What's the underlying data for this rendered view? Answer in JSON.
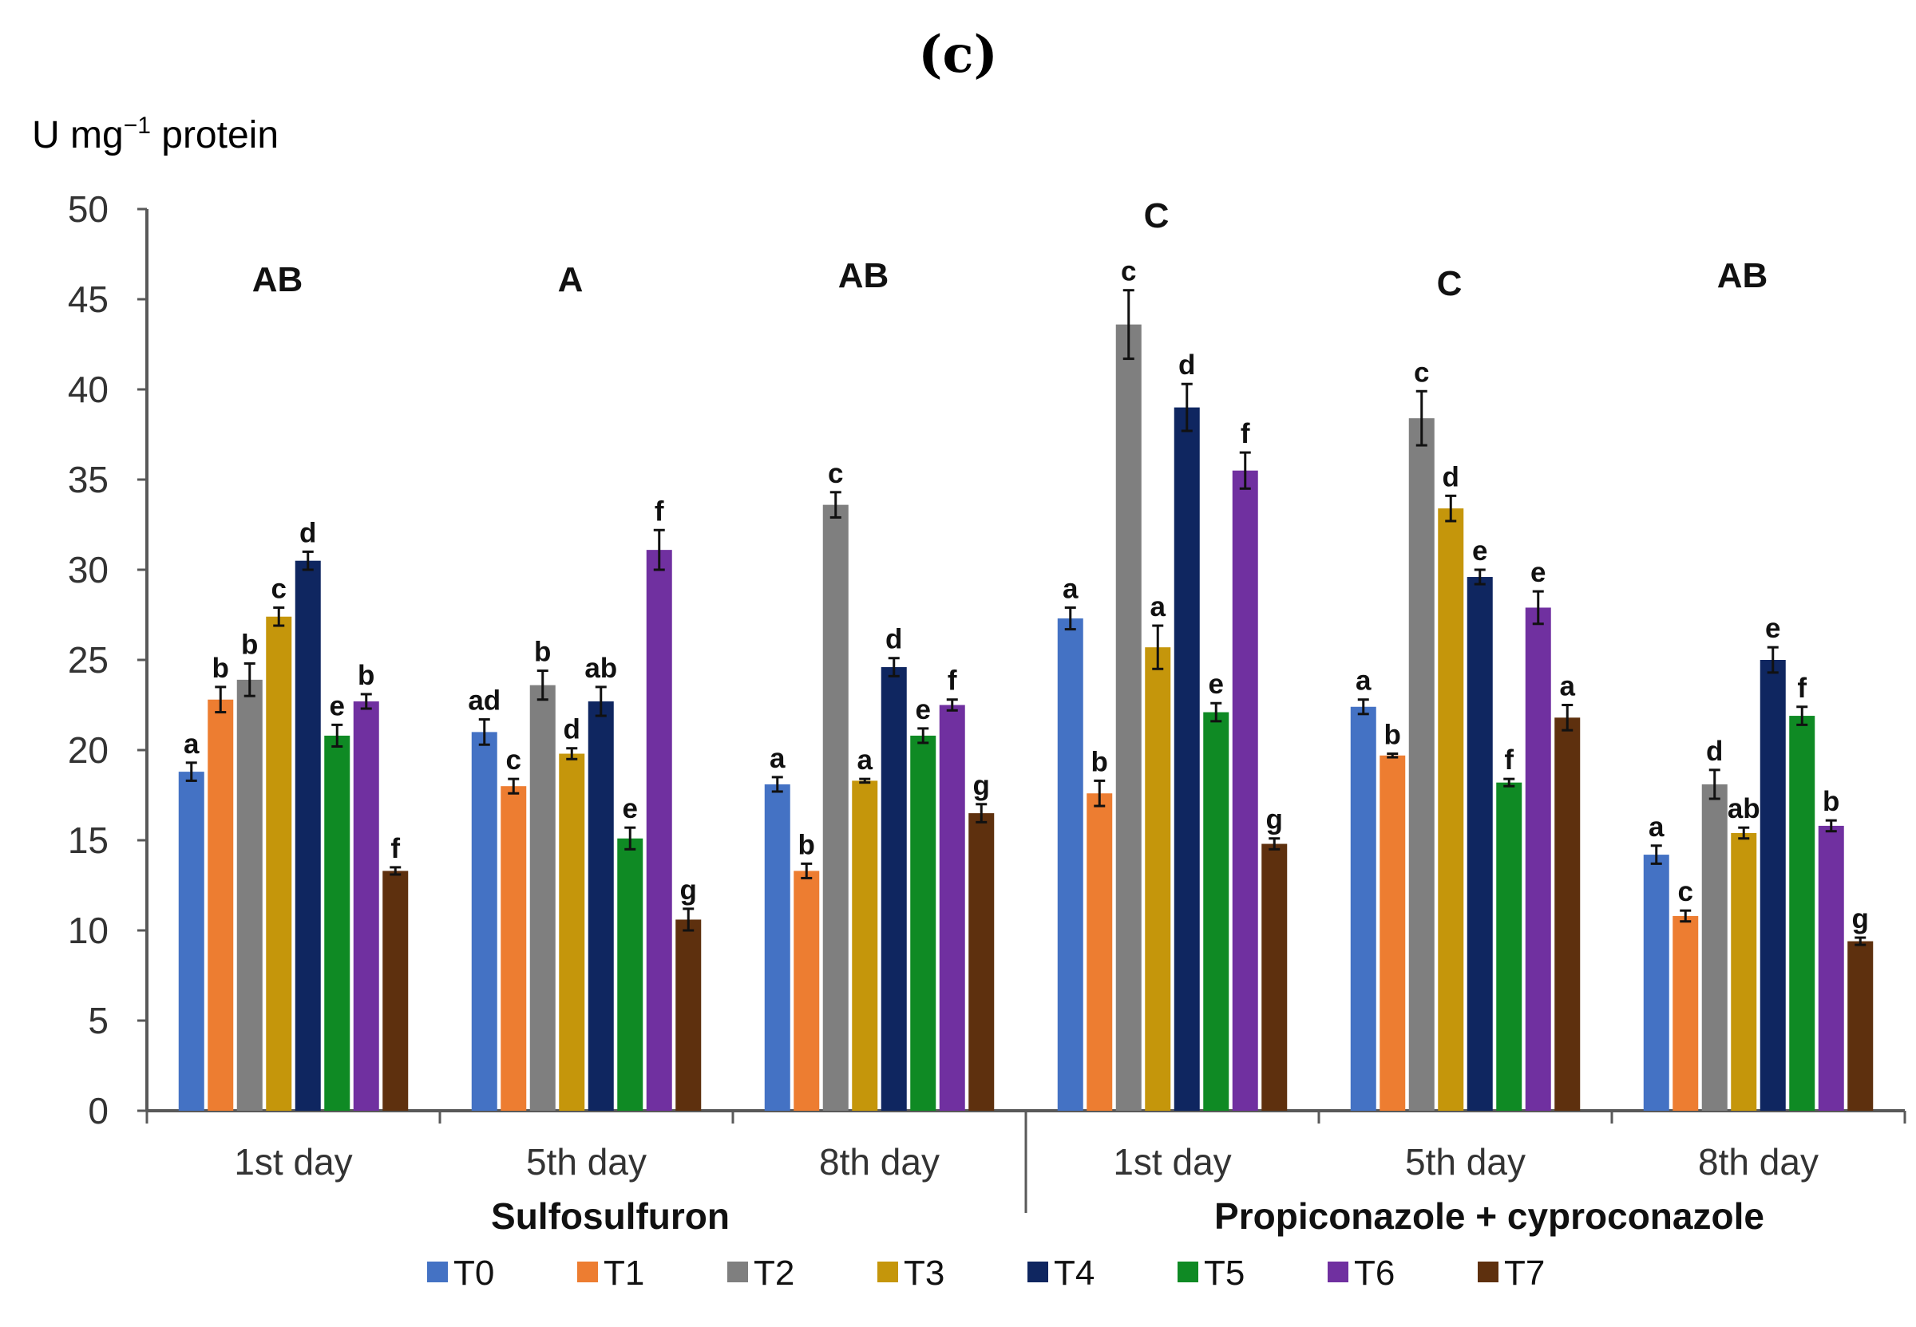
{
  "chart_data": {
    "type": "bar",
    "title": "(c)",
    "ylabel": "U mg",
    "ylabel_sup": "−1",
    "ylabel_suffix": " protein",
    "ylim": [
      0,
      50
    ],
    "yticks": [
      0,
      5,
      10,
      15,
      20,
      25,
      30,
      35,
      40,
      45,
      50
    ],
    "categories": [
      "1st day",
      "5th day",
      "8th day",
      "1st day",
      "5th day",
      "8th day"
    ],
    "groups": [
      {
        "label": "Sulfosulfuron",
        "categories": [
          0,
          1,
          2
        ]
      },
      {
        "label": "Propiconazole + cyproconazole",
        "categories": [
          3,
          4,
          5
        ]
      }
    ],
    "category_significance": [
      "AB",
      "A",
      "AB",
      "C",
      "C",
      "AB"
    ],
    "series": [
      {
        "name": "T0",
        "color": "#4472C4",
        "values": [
          18.8,
          21.0,
          18.1,
          27.3,
          22.4,
          14.2
        ],
        "errors": [
          0.5,
          0.7,
          0.4,
          0.6,
          0.4,
          0.5
        ],
        "letters": [
          "a",
          "ad",
          "a",
          "a",
          "a",
          "a"
        ]
      },
      {
        "name": "T1",
        "color": "#ED7D31",
        "values": [
          22.8,
          18.0,
          13.3,
          17.6,
          19.7,
          10.8
        ],
        "errors": [
          0.7,
          0.4,
          0.4,
          0.7,
          0.1,
          0.3
        ],
        "letters": [
          "b",
          "c",
          "b",
          "b",
          "b",
          "c"
        ]
      },
      {
        "name": "T2",
        "color": "#7F7F7F",
        "values": [
          23.9,
          23.6,
          33.6,
          43.6,
          38.4,
          18.1
        ],
        "errors": [
          0.9,
          0.8,
          0.7,
          1.9,
          1.5,
          0.8
        ],
        "letters": [
          "b",
          "b",
          "c",
          "c",
          "c",
          "d"
        ]
      },
      {
        "name": "T3",
        "color": "#C5960B",
        "values": [
          27.4,
          19.8,
          18.3,
          25.7,
          33.4,
          15.4
        ],
        "errors": [
          0.5,
          0.3,
          0.1,
          1.2,
          0.7,
          0.3
        ],
        "letters": [
          "c",
          "d",
          "a",
          "a",
          "d",
          "ab"
        ]
      },
      {
        "name": "T4",
        "color": "#0F2660",
        "values": [
          30.5,
          22.7,
          24.6,
          39.0,
          29.6,
          25.0
        ],
        "errors": [
          0.5,
          0.8,
          0.5,
          1.3,
          0.4,
          0.7
        ],
        "letters": [
          "d",
          "ab",
          "d",
          "d",
          "e",
          "e"
        ]
      },
      {
        "name": "T5",
        "color": "#0F8A24",
        "values": [
          20.8,
          15.1,
          20.8,
          22.1,
          18.2,
          21.9
        ],
        "errors": [
          0.6,
          0.6,
          0.4,
          0.5,
          0.2,
          0.5
        ],
        "letters": [
          "e",
          "e",
          "e",
          "e",
          "f",
          "f"
        ]
      },
      {
        "name": "T6",
        "color": "#7030A0",
        "values": [
          22.7,
          31.1,
          22.5,
          35.5,
          27.9,
          15.8
        ],
        "errors": [
          0.4,
          1.1,
          0.3,
          1.0,
          0.9,
          0.3
        ],
        "letters": [
          "b",
          "f",
          "f",
          "f",
          "e",
          "b"
        ]
      },
      {
        "name": "T7",
        "color": "#5E300E",
        "values": [
          13.3,
          10.6,
          16.5,
          14.8,
          21.8,
          9.4
        ],
        "errors": [
          0.2,
          0.6,
          0.5,
          0.3,
          0.7,
          0.2
        ],
        "letters": [
          "f",
          "g",
          "g",
          "g",
          "a",
          "g"
        ]
      }
    ]
  }
}
